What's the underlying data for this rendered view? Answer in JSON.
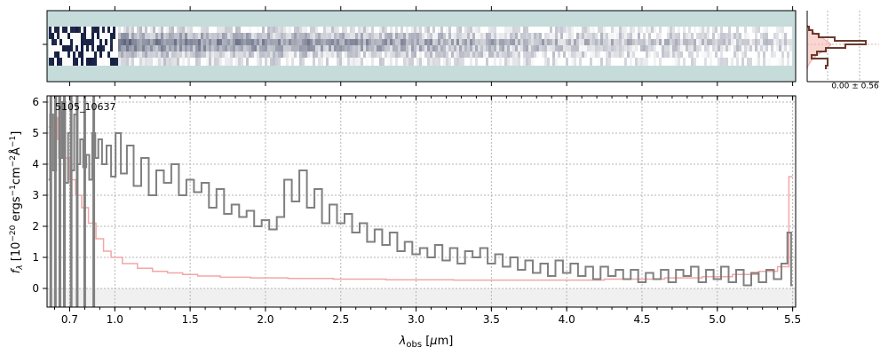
{
  "chart_data": {
    "type": "line",
    "object_label": "5105_10637",
    "xlabel": "λ_obs [μm]",
    "ylabel": "f_λ [10^-20 ergs^-1 cm^-2 Å^-1]",
    "xlim": [
      0.55,
      5.52
    ],
    "ylim": [
      -0.6,
      6.2
    ],
    "x_ticks": [
      0.7,
      1.0,
      1.5,
      2.0,
      2.5,
      3.0,
      3.5,
      4.0,
      4.5,
      5.0,
      5.5
    ],
    "x_tick_labels": [
      "0.7",
      "1.0",
      "1.5",
      "2.0",
      "2.5",
      "3.0",
      "3.5",
      "4.0",
      "4.5",
      "5.0",
      "5.5"
    ],
    "y_ticks": [
      0,
      1,
      2,
      3,
      4,
      5,
      6
    ],
    "y_tick_labels": [
      "0",
      "1",
      "2",
      "3",
      "4",
      "5",
      "6"
    ],
    "grid": true,
    "series": [
      {
        "role": "flux",
        "color": "#808080",
        "points": [
          [
            0.56,
            3.5
          ],
          [
            0.58,
            5.6
          ],
          [
            0.6,
            3.8
          ],
          [
            0.62,
            6.2
          ],
          [
            0.64,
            4.2
          ],
          [
            0.66,
            6.0
          ],
          [
            0.68,
            3.4
          ],
          [
            0.7,
            5.0
          ],
          [
            0.72,
            3.8
          ],
          [
            0.74,
            5.6
          ],
          [
            0.76,
            4.0
          ],
          [
            0.78,
            4.8
          ],
          [
            0.8,
            3.9
          ],
          [
            0.82,
            4.3
          ],
          [
            0.84,
            3.5
          ],
          [
            0.86,
            5.0
          ],
          [
            0.88,
            4.2
          ],
          [
            0.9,
            4.8
          ],
          [
            0.93,
            4.0
          ],
          [
            0.96,
            4.6
          ],
          [
            0.99,
            3.6
          ],
          [
            1.02,
            5.0
          ],
          [
            1.06,
            3.7
          ],
          [
            1.1,
            4.6
          ],
          [
            1.15,
            3.3
          ],
          [
            1.2,
            4.2
          ],
          [
            1.25,
            3.0
          ],
          [
            1.3,
            3.8
          ],
          [
            1.35,
            3.4
          ],
          [
            1.4,
            4.0
          ],
          [
            1.45,
            3.0
          ],
          [
            1.5,
            3.5
          ],
          [
            1.55,
            3.1
          ],
          [
            1.6,
            3.4
          ],
          [
            1.65,
            2.6
          ],
          [
            1.7,
            3.2
          ],
          [
            1.75,
            2.4
          ],
          [
            1.8,
            2.7
          ],
          [
            1.85,
            2.3
          ],
          [
            1.9,
            2.5
          ],
          [
            1.95,
            2.0
          ],
          [
            2.0,
            2.2
          ],
          [
            2.05,
            1.9
          ],
          [
            2.1,
            2.3
          ],
          [
            2.15,
            3.5
          ],
          [
            2.2,
            2.8
          ],
          [
            2.25,
            3.8
          ],
          [
            2.3,
            2.6
          ],
          [
            2.35,
            3.2
          ],
          [
            2.4,
            2.1
          ],
          [
            2.45,
            2.7
          ],
          [
            2.5,
            2.1
          ],
          [
            2.55,
            2.4
          ],
          [
            2.6,
            1.8
          ],
          [
            2.65,
            2.1
          ],
          [
            2.7,
            1.5
          ],
          [
            2.75,
            1.9
          ],
          [
            2.8,
            1.4
          ],
          [
            2.85,
            1.8
          ],
          [
            2.9,
            1.2
          ],
          [
            2.95,
            1.5
          ],
          [
            3.0,
            1.1
          ],
          [
            3.05,
            1.3
          ],
          [
            3.1,
            1.0
          ],
          [
            3.15,
            1.4
          ],
          [
            3.2,
            0.9
          ],
          [
            3.25,
            1.3
          ],
          [
            3.3,
            0.8
          ],
          [
            3.35,
            1.2
          ],
          [
            3.4,
            1.0
          ],
          [
            3.45,
            1.3
          ],
          [
            3.5,
            0.8
          ],
          [
            3.55,
            1.1
          ],
          [
            3.6,
            0.7
          ],
          [
            3.65,
            1.0
          ],
          [
            3.7,
            0.6
          ],
          [
            3.75,
            0.9
          ],
          [
            3.8,
            0.5
          ],
          [
            3.85,
            0.8
          ],
          [
            3.9,
            0.4
          ],
          [
            3.95,
            0.9
          ],
          [
            4.0,
            0.5
          ],
          [
            4.05,
            0.8
          ],
          [
            4.1,
            0.4
          ],
          [
            4.15,
            0.7
          ],
          [
            4.2,
            0.3
          ],
          [
            4.25,
            0.7
          ],
          [
            4.3,
            0.4
          ],
          [
            4.35,
            0.6
          ],
          [
            4.4,
            0.3
          ],
          [
            4.45,
            0.6
          ],
          [
            4.5,
            0.2
          ],
          [
            4.55,
            0.5
          ],
          [
            4.6,
            0.3
          ],
          [
            4.65,
            0.6
          ],
          [
            4.7,
            0.2
          ],
          [
            4.75,
            0.6
          ],
          [
            4.8,
            0.4
          ],
          [
            4.85,
            0.7
          ],
          [
            4.9,
            0.2
          ],
          [
            4.95,
            0.6
          ],
          [
            5.0,
            0.3
          ],
          [
            5.05,
            0.7
          ],
          [
            5.1,
            0.2
          ],
          [
            5.15,
            0.6
          ],
          [
            5.2,
            0.1
          ],
          [
            5.25,
            0.5
          ],
          [
            5.3,
            0.2
          ],
          [
            5.35,
            0.6
          ],
          [
            5.4,
            0.3
          ],
          [
            5.45,
            0.8
          ],
          [
            5.48,
            1.8
          ],
          [
            5.5,
            0.1
          ]
        ]
      },
      {
        "role": "error",
        "color": "#f4a6a6",
        "points": [
          [
            0.56,
            5.2
          ],
          [
            0.6,
            5.5
          ],
          [
            0.64,
            4.8
          ],
          [
            0.68,
            4.2
          ],
          [
            0.72,
            3.5
          ],
          [
            0.76,
            3.0
          ],
          [
            0.8,
            2.6
          ],
          [
            0.85,
            2.1
          ],
          [
            0.9,
            1.6
          ],
          [
            0.95,
            1.2
          ],
          [
            1.0,
            1.0
          ],
          [
            1.1,
            0.8
          ],
          [
            1.2,
            0.65
          ],
          [
            1.3,
            0.55
          ],
          [
            1.4,
            0.5
          ],
          [
            1.5,
            0.45
          ],
          [
            1.6,
            0.4
          ],
          [
            1.8,
            0.36
          ],
          [
            2.0,
            0.34
          ],
          [
            2.3,
            0.32
          ],
          [
            2.6,
            0.3
          ],
          [
            3.0,
            0.28
          ],
          [
            3.5,
            0.27
          ],
          [
            4.0,
            0.27
          ],
          [
            4.5,
            0.3
          ],
          [
            4.8,
            0.34
          ],
          [
            5.0,
            0.38
          ],
          [
            5.2,
            0.45
          ],
          [
            5.35,
            0.55
          ],
          [
            5.45,
            0.7
          ],
          [
            5.5,
            3.6
          ]
        ]
      }
    ],
    "spectrum_2d": {
      "type": "heatmap",
      "colormap": "gray-blue",
      "background_color": "#c6dcdb"
    },
    "profile": {
      "type": "histogram",
      "label": "0.00 ± 0.56",
      "model_color": "#f4b4ad",
      "data_color": "#6b3a2e"
    }
  }
}
